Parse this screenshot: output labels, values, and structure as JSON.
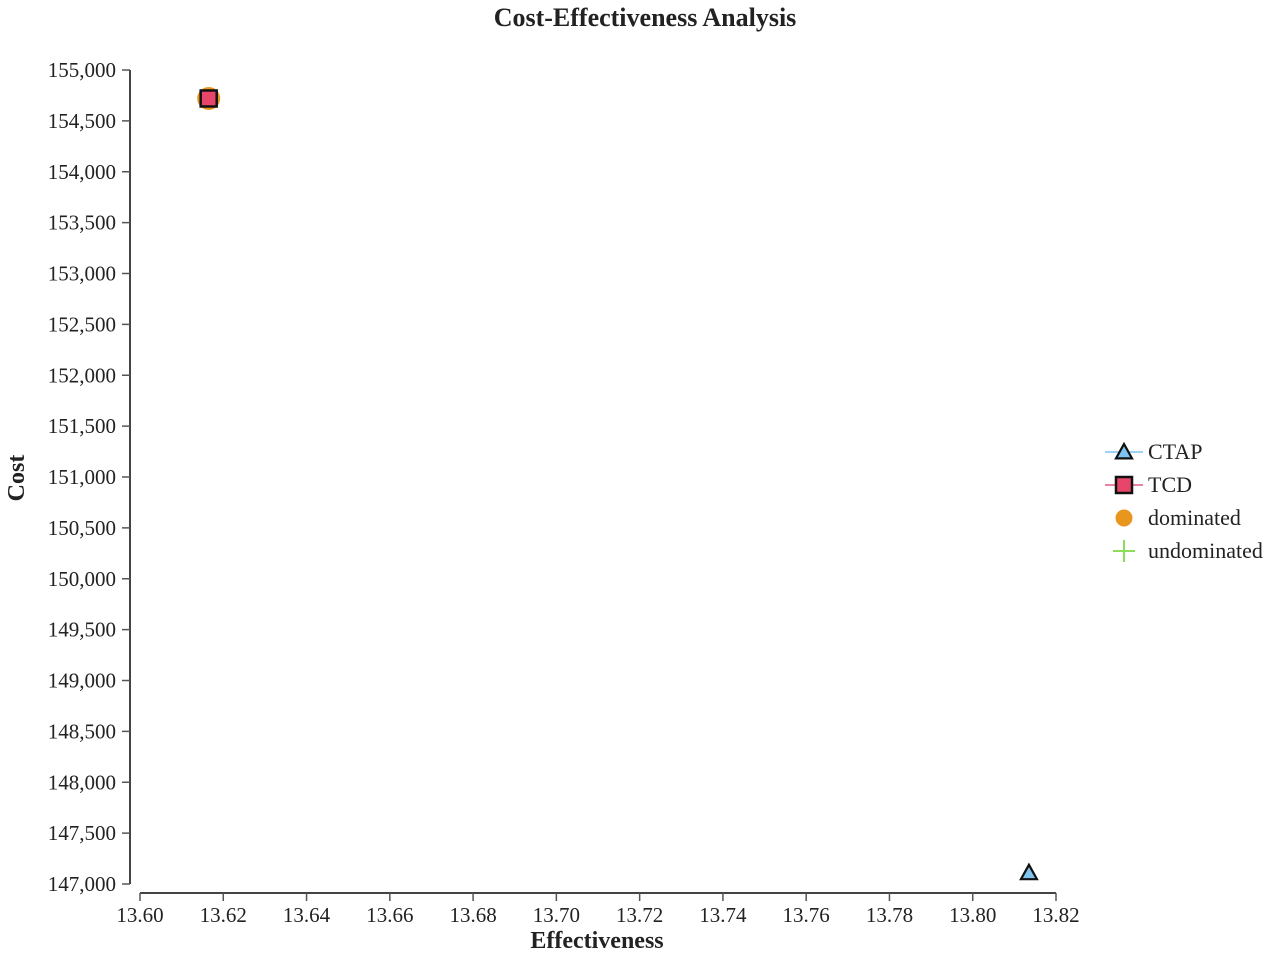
{
  "chart_data": {
    "type": "scatter",
    "title": "Cost-Effectiveness Analysis",
    "xlabel": "Effectiveness",
    "ylabel": "Cost",
    "xlim": [
      13.6,
      13.82
    ],
    "ylim": [
      147000,
      155000
    ],
    "x_ticks": [
      "13.60",
      "13.62",
      "13.64",
      "13.66",
      "13.68",
      "13.70",
      "13.72",
      "13.74",
      "13.76",
      "13.78",
      "13.80",
      "13.82"
    ],
    "y_ticks": [
      "147,000",
      "147,500",
      "148,000",
      "148,500",
      "149,000",
      "149,500",
      "150,000",
      "150,500",
      "151,000",
      "151,500",
      "152,000",
      "152,500",
      "153,000",
      "153,500",
      "154,000",
      "154,500",
      "155,000"
    ],
    "grid": false,
    "legend_position": "right",
    "series": [
      {
        "name": "CTAP",
        "marker": "triangle",
        "color": "#7fc4ee",
        "line_color": "#7fc4ee",
        "points": [
          {
            "x": 13.8135,
            "y": 147110
          }
        ]
      },
      {
        "name": "TCD",
        "marker": "square",
        "color": "#e8456b",
        "line_color": "#e05a88",
        "points": [
          {
            "x": 13.6165,
            "y": 154720
          }
        ]
      },
      {
        "name": "dominated",
        "marker": "circle",
        "color": "#e8961e",
        "points": [
          {
            "x": 13.6165,
            "y": 154720
          }
        ]
      },
      {
        "name": "undominated",
        "marker": "plus",
        "color": "#8cde5a",
        "points": []
      }
    ]
  }
}
